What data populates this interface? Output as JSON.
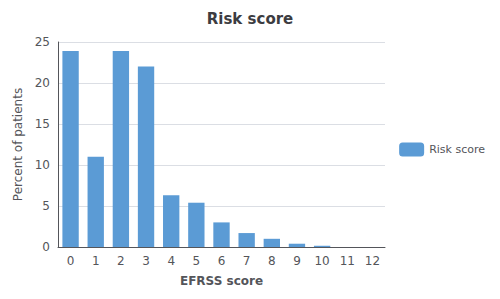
{
  "chart_data": {
    "type": "bar",
    "title": "Risk score",
    "xlabel": "EFRSS score",
    "ylabel": "Percent of patients",
    "categories": [
      0,
      1,
      2,
      3,
      4,
      5,
      6,
      7,
      8,
      9,
      10,
      11,
      12
    ],
    "series": [
      {
        "name": "Risk score",
        "color": "#5B9BD5",
        "values": [
          23.9,
          11.0,
          23.9,
          22.0,
          6.3,
          5.4,
          3.0,
          1.7,
          1.0,
          0.4,
          0.15,
          0.0,
          0.0
        ]
      }
    ],
    "ylim": [
      0,
      25
    ],
    "yticks": [
      0,
      5,
      10,
      15,
      20,
      25
    ],
    "grid": true,
    "legend": "right"
  }
}
